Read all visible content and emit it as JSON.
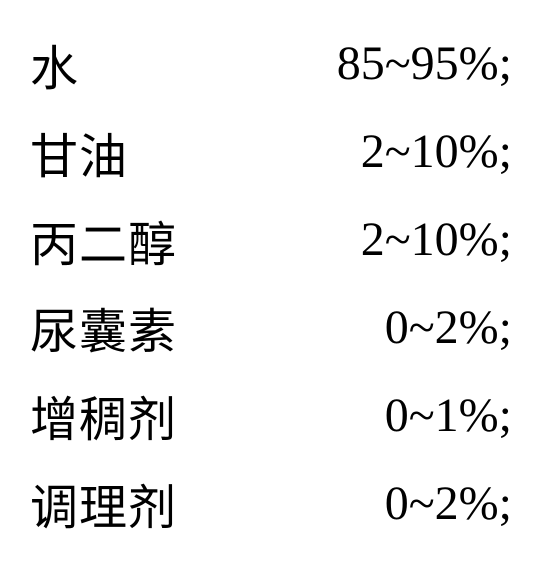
{
  "composition_table": {
    "type": "table",
    "background_color": "#ffffff",
    "text_color": "#000000",
    "font_family": "SimSun",
    "label_fontsize": 48,
    "value_fontsize": 48,
    "rows": [
      {
        "label": "水",
        "value": "85~95%;"
      },
      {
        "label": "甘油",
        "value": "2~10%;"
      },
      {
        "label": "丙二醇",
        "value": "2~10%;"
      },
      {
        "label": "尿囊素",
        "value": "0~2%;"
      },
      {
        "label": "增稠剂",
        "value": "0~1%;"
      },
      {
        "label": "调理剂",
        "value": "0~2%;"
      }
    ]
  }
}
